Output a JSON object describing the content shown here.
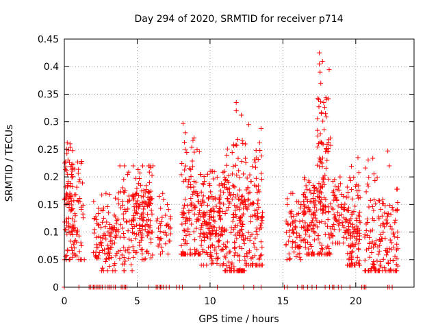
{
  "chart_data": {
    "type": "scatter",
    "title": "Day 294 of 2020, SRMTID for receiver p714",
    "xlabel": "GPS time / hours",
    "ylabel": "SRMTID / TECUs",
    "xlim": [
      0,
      24
    ],
    "ylim": [
      0,
      0.45
    ],
    "x_ticks": [
      0,
      5,
      10,
      15,
      20
    ],
    "x_tick_labels": [
      "0",
      "5",
      "10",
      "15",
      "20"
    ],
    "y_ticks": [
      0,
      0.05,
      0.1,
      0.15,
      0.2,
      0.25,
      0.3,
      0.35,
      0.4,
      0.45
    ],
    "y_tick_labels": [
      "0",
      "0.05",
      "0.1",
      "0.15",
      "0.2",
      "0.25",
      "0.3",
      "0.35",
      "0.4",
      "0.45"
    ],
    "grid": true,
    "marker": "+",
    "color": "#ff0000",
    "clusters": [
      {
        "x0": 0.0,
        "x1": 0.6,
        "ymin": 0.05,
        "ymax": 0.26,
        "center": 0.15,
        "n": 90
      },
      {
        "x0": 0.6,
        "x1": 1.4,
        "ymin": 0.05,
        "ymax": 0.23,
        "center": 0.12,
        "n": 50
      },
      {
        "x0": 2.0,
        "x1": 3.7,
        "ymin": 0.03,
        "ymax": 0.17,
        "center": 0.09,
        "n": 110
      },
      {
        "x0": 3.7,
        "x1": 4.7,
        "ymin": 0.03,
        "ymax": 0.22,
        "center": 0.12,
        "n": 60
      },
      {
        "x0": 4.7,
        "x1": 6.1,
        "ymin": 0.05,
        "ymax": 0.22,
        "center": 0.13,
        "n": 140
      },
      {
        "x0": 6.3,
        "x1": 7.3,
        "ymin": 0.06,
        "ymax": 0.17,
        "center": 0.11,
        "n": 40
      },
      {
        "x0": 8.0,
        "x1": 9.4,
        "ymin": 0.06,
        "ymax": 0.3,
        "center": 0.13,
        "n": 130
      },
      {
        "x0": 9.4,
        "x1": 11.0,
        "ymin": 0.04,
        "ymax": 0.21,
        "center": 0.12,
        "n": 170
      },
      {
        "x0": 11.0,
        "x1": 12.4,
        "ymin": 0.03,
        "ymax": 0.34,
        "center": 0.1,
        "n": 170
      },
      {
        "x0": 12.4,
        "x1": 13.6,
        "ymin": 0.04,
        "ymax": 0.29,
        "center": 0.12,
        "n": 110
      },
      {
        "x0": 15.2,
        "x1": 16.4,
        "ymin": 0.05,
        "ymax": 0.17,
        "center": 0.11,
        "n": 70
      },
      {
        "x0": 16.4,
        "x1": 17.3,
        "ymin": 0.06,
        "ymax": 0.21,
        "center": 0.12,
        "n": 90
      },
      {
        "x0": 17.3,
        "x1": 18.3,
        "ymin": 0.06,
        "ymax": 0.42,
        "center": 0.18,
        "n": 130
      },
      {
        "x0": 18.3,
        "x1": 19.4,
        "ymin": 0.08,
        "ymax": 0.2,
        "center": 0.13,
        "n": 70
      },
      {
        "x0": 19.4,
        "x1": 20.3,
        "ymin": 0.04,
        "ymax": 0.24,
        "center": 0.1,
        "n": 110
      },
      {
        "x0": 20.6,
        "x1": 22.9,
        "ymin": 0.03,
        "ymax": 0.25,
        "center": 0.09,
        "n": 160
      }
    ],
    "peaks": [
      {
        "x": 17.5,
        "y": 0.425
      },
      {
        "x": 17.5,
        "y": 0.405
      },
      {
        "x": 17.55,
        "y": 0.39
      },
      {
        "x": 17.6,
        "y": 0.37
      },
      {
        "x": 17.45,
        "y": 0.34
      },
      {
        "x": 17.8,
        "y": 0.335
      },
      {
        "x": 11.8,
        "y": 0.335
      },
      {
        "x": 11.8,
        "y": 0.32
      },
      {
        "x": 8.15,
        "y": 0.297
      },
      {
        "x": 12.65,
        "y": 0.295
      },
      {
        "x": 13.5,
        "y": 0.288
      },
      {
        "x": 8.3,
        "y": 0.28
      },
      {
        "x": 0.2,
        "y": 0.262
      },
      {
        "x": 11.9,
        "y": 0.268
      },
      {
        "x": 13.4,
        "y": 0.262
      },
      {
        "x": 22.2,
        "y": 0.247
      },
      {
        "x": 20.15,
        "y": 0.235
      },
      {
        "x": 22.3,
        "y": 0.22
      }
    ],
    "zero_markers_x": [
      0.0,
      1.0,
      1.7,
      1.8,
      1.9,
      2.0,
      2.1,
      2.2,
      2.3,
      2.4,
      2.5,
      2.6,
      2.8,
      3.0,
      3.1,
      3.2,
      3.4,
      3.5,
      3.9,
      4.0,
      4.1,
      4.2,
      4.3,
      5.8,
      6.3,
      6.4,
      6.5,
      6.6,
      6.7,
      6.8,
      7.0,
      7.2,
      7.7,
      7.9,
      8.1,
      9.3,
      10.5,
      12.3,
      13.0,
      13.5,
      15.1,
      15.3,
      16.0,
      16.3,
      16.4,
      16.7,
      17.0,
      17.3,
      17.9,
      18.2,
      18.4,
      18.5,
      18.8,
      19.0,
      19.6,
      20.4,
      20.5,
      20.6,
      20.7,
      22.2,
      22.3,
      22.5
    ]
  }
}
